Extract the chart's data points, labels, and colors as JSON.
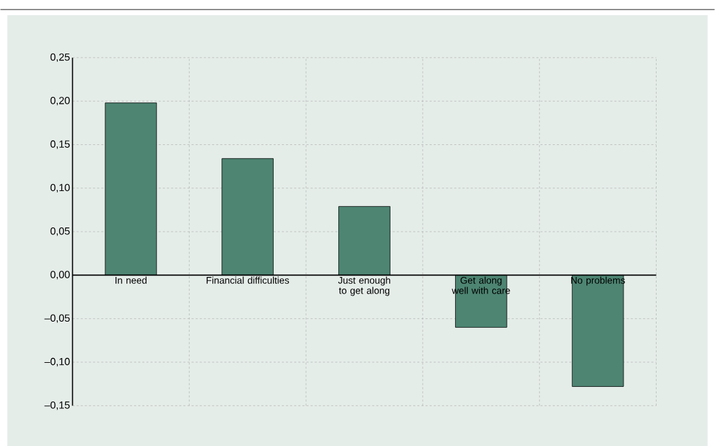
{
  "chart_data": {
    "type": "bar",
    "categories": [
      "In need",
      "Financial difficulties",
      "Just enough to get along",
      "Get along well with care",
      "No problems"
    ],
    "values": [
      0.198,
      0.134,
      0.079,
      -0.06,
      -0.128
    ],
    "color": "#4d8572",
    "ylim": [
      -0.15,
      0.25
    ],
    "yticks": [
      {
        "value": -0.15,
        "label": "–0,15"
      },
      {
        "value": -0.1,
        "label": "–0,10"
      },
      {
        "value": -0.05,
        "label": "–0,05"
      },
      {
        "value": 0,
        "label": "0,00"
      },
      {
        "value": 0.05,
        "label": "0,05"
      },
      {
        "value": 0.1,
        "label": "0,10"
      },
      {
        "value": 0.15,
        "label": "0,15"
      },
      {
        "value": 0.2,
        "label": "0,20"
      },
      {
        "value": 0.25,
        "label": "0,25"
      }
    ],
    "grid": true
  }
}
